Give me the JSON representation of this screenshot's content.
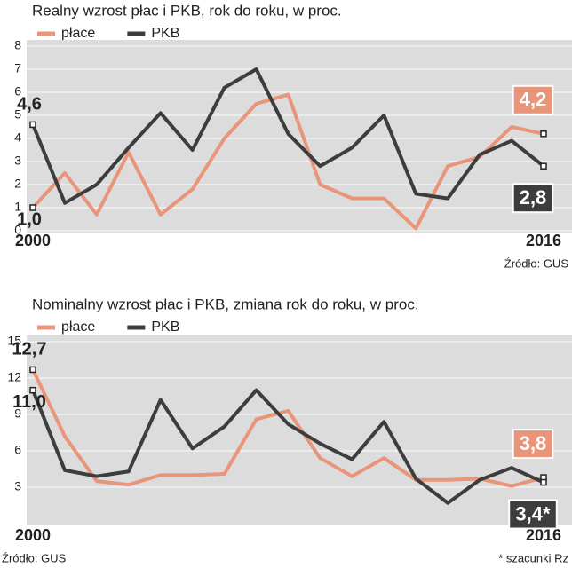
{
  "chart_data": [
    {
      "type": "line",
      "title": "Realny wzrost płac i PKB, rok do roku, w proc.",
      "categories": [
        "2000",
        null,
        null,
        null,
        null,
        null,
        null,
        null,
        null,
        null,
        null,
        null,
        null,
        null,
        null,
        null,
        "2016"
      ],
      "series": [
        {
          "name": "płace",
          "color": "#e8957a",
          "values": [
            1.0,
            2.5,
            0.7,
            3.4,
            0.7,
            1.8,
            4.0,
            5.5,
            5.9,
            2.0,
            1.4,
            1.4,
            0.1,
            2.8,
            3.2,
            4.5,
            4.2
          ],
          "value_labels": [
            "1,0",
            null,
            null,
            null,
            null,
            null,
            null,
            null,
            null,
            null,
            null,
            null,
            null,
            null,
            null,
            null,
            "4,2"
          ]
        },
        {
          "name": "PKB",
          "color": "#3d3d3d",
          "values": [
            4.6,
            1.2,
            2.0,
            3.6,
            5.1,
            3.5,
            6.2,
            7.0,
            4.2,
            2.8,
            3.6,
            5.0,
            1.6,
            1.4,
            3.3,
            3.9,
            2.8
          ],
          "value_labels": [
            "4,6",
            null,
            null,
            null,
            null,
            null,
            null,
            null,
            null,
            null,
            null,
            null,
            null,
            null,
            null,
            null,
            "2,8"
          ]
        }
      ],
      "ylim": [
        0,
        8
      ],
      "yticks": [
        0,
        1,
        2,
        3,
        4,
        5,
        6,
        7,
        8
      ],
      "grid": true,
      "source": "Źródło: GUS"
    },
    {
      "type": "line",
      "title": "Nominalny wzrost płac i PKB, zmiana rok do roku, w proc.",
      "categories": [
        "2000",
        null,
        null,
        null,
        null,
        null,
        null,
        null,
        null,
        null,
        null,
        null,
        null,
        null,
        null,
        null,
        "2016"
      ],
      "series": [
        {
          "name": "płace",
          "color": "#e8957a",
          "values": [
            12.7,
            7.2,
            3.5,
            3.2,
            4.0,
            4.0,
            4.1,
            8.6,
            9.3,
            5.4,
            3.9,
            5.4,
            3.6,
            3.6,
            3.7,
            3.1,
            3.8
          ],
          "value_labels": [
            "12,7",
            null,
            null,
            null,
            null,
            null,
            null,
            null,
            null,
            null,
            null,
            null,
            null,
            null,
            null,
            null,
            "3,8"
          ]
        },
        {
          "name": "PKB",
          "color": "#3d3d3d",
          "values": [
            11.0,
            4.4,
            3.9,
            4.3,
            10.2,
            6.2,
            8.0,
            11.0,
            8.2,
            6.6,
            5.3,
            8.4,
            3.7,
            1.7,
            3.6,
            4.6,
            3.4
          ],
          "value_labels": [
            "11,0",
            null,
            null,
            null,
            null,
            null,
            null,
            null,
            null,
            null,
            null,
            null,
            null,
            null,
            null,
            null,
            "3,4*"
          ]
        }
      ],
      "ylim": [
        0,
        15
      ],
      "yticks": [
        3,
        6,
        9,
        12,
        15
      ],
      "grid": true,
      "source": "Źródło: GUS",
      "note": "* szacunki Rz"
    }
  ]
}
